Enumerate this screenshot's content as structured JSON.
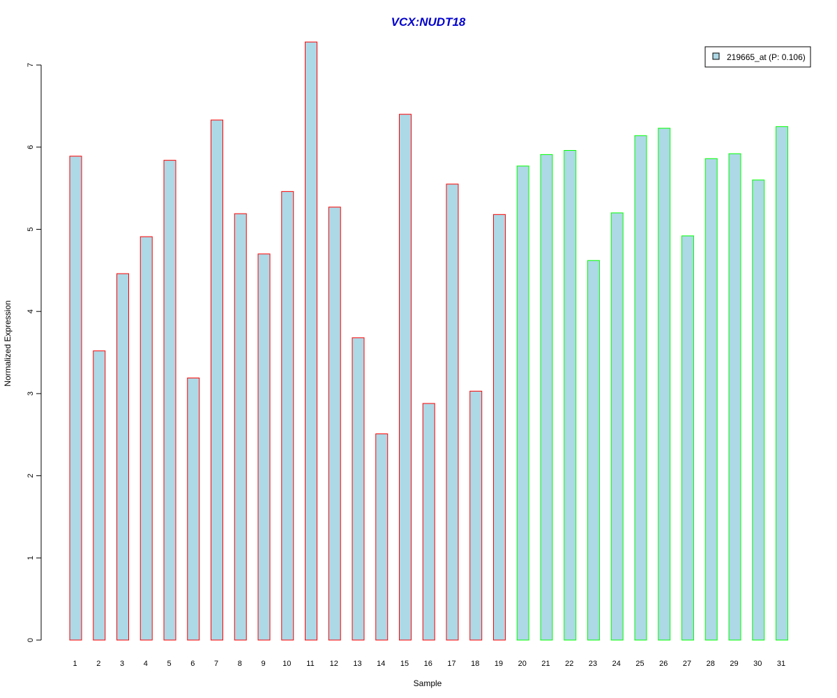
{
  "chart_data": {
    "type": "bar",
    "title": "VCX:NUDT18",
    "xlabel": "Sample",
    "ylabel": "Normalized Expression",
    "ylim": [
      0,
      7.3
    ],
    "yticks": [
      0,
      1,
      2,
      3,
      4,
      5,
      6,
      7
    ],
    "categories": [
      "1",
      "2",
      "3",
      "4",
      "5",
      "6",
      "7",
      "8",
      "9",
      "10",
      "11",
      "12",
      "13",
      "14",
      "15",
      "16",
      "17",
      "18",
      "19",
      "20",
      "21",
      "22",
      "23",
      "24",
      "25",
      "26",
      "27",
      "28",
      "29",
      "30",
      "31"
    ],
    "series": [
      {
        "name": "219665_at (P: 0.106)",
        "values": [
          5.89,
          3.52,
          4.46,
          4.91,
          5.84,
          3.19,
          6.33,
          5.19,
          4.7,
          5.46,
          7.28,
          5.27,
          3.68,
          2.51,
          6.4,
          2.88,
          5.55,
          3.03,
          5.18,
          5.77,
          5.91,
          5.96,
          4.62,
          5.2,
          6.14,
          6.23,
          4.92,
          5.86,
          5.92,
          5.6,
          6.25
        ]
      }
    ],
    "group_border_colors": [
      "#ff0000",
      "#ff0000",
      "#ff0000",
      "#ff0000",
      "#ff0000",
      "#ff0000",
      "#ff0000",
      "#ff0000",
      "#ff0000",
      "#ff0000",
      "#ff0000",
      "#ff0000",
      "#ff0000",
      "#ff0000",
      "#ff0000",
      "#ff0000",
      "#ff0000",
      "#ff0000",
      "#ff0000",
      "#00ff00",
      "#00ff00",
      "#00ff00",
      "#00ff00",
      "#00ff00",
      "#00ff00",
      "#00ff00",
      "#00ff00",
      "#00ff00",
      "#00ff00",
      "#00ff00",
      "#00ff00"
    ],
    "bar_fill_color": "#add8e6",
    "title_color": "#0000cc",
    "legend": {
      "label": "219665_at (P: 0.106)",
      "placement": "top-right"
    },
    "grid": false
  }
}
